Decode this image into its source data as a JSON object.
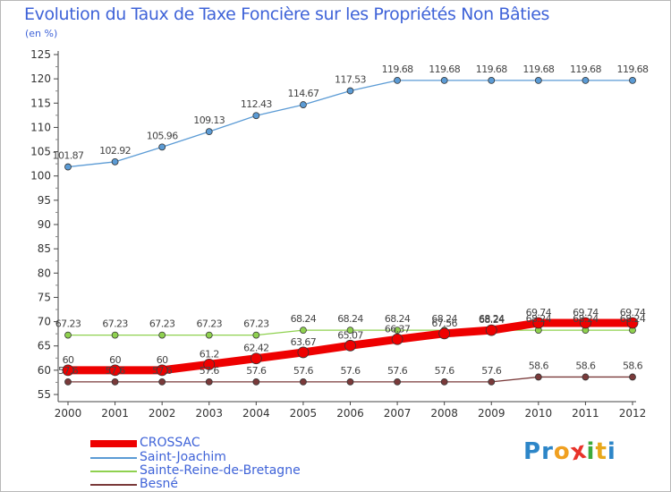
{
  "title": "Evolution du Taux de Taxe Foncière sur les Propriétés Non Bâties",
  "subtitle": "(en %)",
  "logo": {
    "letters": [
      "P",
      "r",
      "o",
      "x",
      "i",
      "t",
      "i"
    ],
    "colors": [
      "#2d86c8",
      "#2d86c8",
      "#f0a020",
      "#e8332a",
      "#3caa3c",
      "#e8a81c",
      "#2d86c8"
    ]
  },
  "chart_data": {
    "type": "line",
    "title": "Evolution du Taux de Taxe Foncière sur les Propriétés Non Bâties",
    "ylabel": "(en %)",
    "xlabel": "",
    "x": [
      "2000",
      "2001",
      "2002",
      "2003",
      "2004",
      "2005",
      "2006",
      "2007",
      "2008",
      "2009",
      "2010",
      "2011",
      "2012"
    ],
    "ylim": [
      55,
      125
    ],
    "yticks": [
      "55",
      "60",
      "65",
      "70",
      "75",
      "80",
      "85",
      "90",
      "95",
      "100",
      "105",
      "110",
      "115",
      "120",
      "125"
    ],
    "grid": false,
    "legend_position": "bottom-left",
    "series": [
      {
        "name": "CROSSAC",
        "color": "#ee0000",
        "values": [
          60,
          60,
          60,
          61.2,
          62.42,
          63.67,
          65.07,
          66.37,
          67.56,
          68.24,
          69.74,
          69.74,
          69.74
        ],
        "labels": [
          "60",
          "60",
          "60",
          "61.2",
          "62.42",
          "63.67",
          "65.07",
          "66.37",
          "67.56",
          "68.24",
          "69.74",
          "69.74",
          "69.74"
        ]
      },
      {
        "name": "Saint-Joachim",
        "color": "#5b9bd5",
        "values": [
          101.87,
          102.92,
          105.96,
          109.13,
          112.43,
          114.67,
          117.53,
          119.68,
          119.68,
          119.68,
          119.68,
          119.68,
          119.68
        ],
        "labels": [
          "101.87",
          "102.92",
          "105.96",
          "109.13",
          "112.43",
          "114.67",
          "117.53",
          "119.68",
          "119.68",
          "119.68",
          "119.68",
          "119.68",
          "119.68"
        ]
      },
      {
        "name": "Sainte-Reine-de-Bretagne",
        "color": "#8fd14f",
        "values": [
          67.23,
          67.23,
          67.23,
          67.23,
          67.23,
          68.24,
          68.24,
          68.24,
          68.24,
          68.24,
          68.24,
          68.24,
          68.24
        ],
        "labels": [
          "67.23",
          "67.23",
          "67.23",
          "67.23",
          "67.23",
          "68.24",
          "68.24",
          "68.24",
          "68.24",
          "68.24",
          "68.24",
          "68.24",
          "68.24"
        ]
      },
      {
        "name": "Besné",
        "color": "#7a3a3a",
        "values": [
          57.6,
          57.6,
          57.6,
          57.6,
          57.6,
          57.6,
          57.6,
          57.6,
          57.6,
          57.6,
          58.6,
          58.6,
          58.6
        ],
        "labels": [
          "57.6",
          "57.6",
          "57.6",
          "57.6",
          "57.6",
          "57.6",
          "57.6",
          "57.6",
          "57.6",
          "57.6",
          "58.6",
          "58.6",
          "58.6"
        ]
      }
    ]
  }
}
